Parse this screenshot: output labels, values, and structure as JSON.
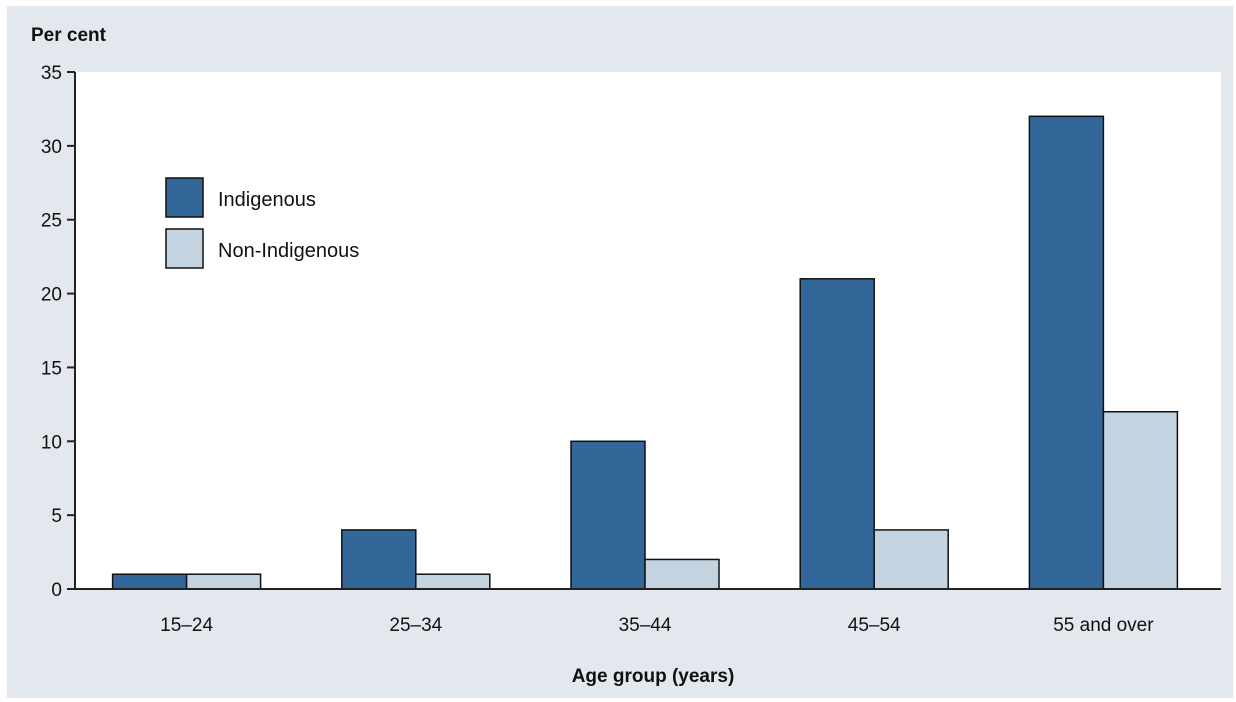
{
  "chart_data": {
    "type": "bar",
    "title": "",
    "ylabel": "Per cent",
    "xlabel": "Age group (years)",
    "ylim": [
      0,
      35
    ],
    "yticks": [
      "0",
      "5",
      "10",
      "15",
      "20",
      "25",
      "30",
      "35"
    ],
    "categories": [
      "15–24",
      "25–34",
      "35–44",
      "45–54",
      "55 and over"
    ],
    "series": [
      {
        "name": "Indigenous",
        "color": "#336699",
        "values": [
          1,
          4,
          10,
          21,
          32
        ]
      },
      {
        "name": "Non-Indigenous",
        "color": "#c3d3e0",
        "values": [
          1,
          1,
          2,
          4,
          12
        ]
      }
    ],
    "legend_position": "top-left",
    "grid": false
  }
}
